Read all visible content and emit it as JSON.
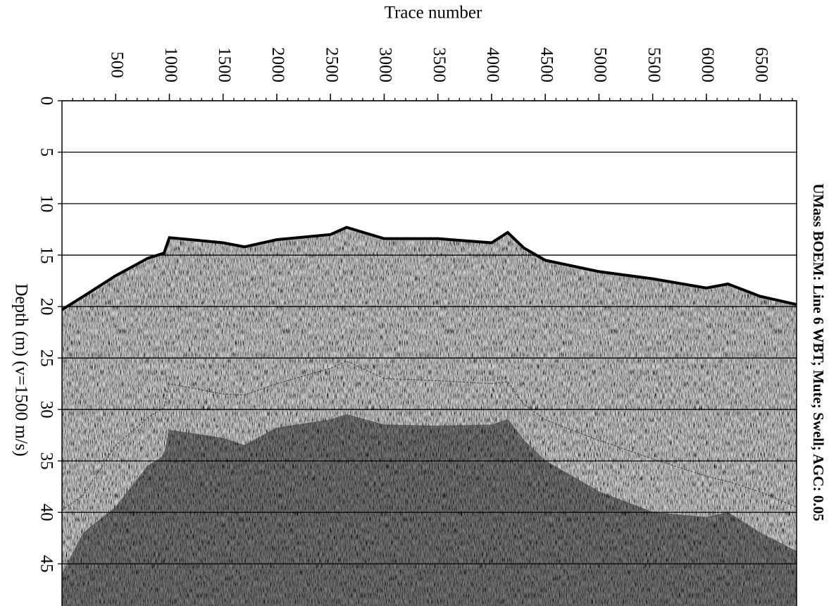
{
  "chart_data": {
    "type": "seismic",
    "title": "UMass BOEM: Line 6 WBT; Mute; Swell; AGC: 0.05",
    "x_label": "Trace number",
    "y_label": "Depth (m) (v=1500 m/s)",
    "xlim": [
      0,
      6840
    ],
    "xticks": [
      500,
      1000,
      1500,
      2000,
      2500,
      3000,
      3500,
      4000,
      4500,
      5000,
      5500,
      6000,
      6500
    ],
    "ylim": [
      0,
      49.1
    ],
    "yticks": [
      0,
      5,
      10,
      15,
      20,
      25,
      30,
      35,
      40,
      45
    ],
    "y_inverted": true,
    "grid": true,
    "x": [
      0,
      200,
      500,
      800,
      950,
      1000,
      1500,
      1700,
      2000,
      2500,
      2650,
      3000,
      3500,
      4000,
      4150,
      4300,
      4500,
      5000,
      5500,
      6000,
      6200,
      6500,
      6840
    ],
    "series": [
      {
        "color": "#000000",
        "fill": "#d2d2d2",
        "values": [
          20.3,
          19,
          17,
          15.3,
          14.8,
          13.3,
          13.8,
          14.2,
          13.5,
          13,
          12.3,
          13.4,
          13.4,
          13.8,
          12.8,
          14.3,
          15.5,
          16.6,
          17.3,
          18.2,
          17.8,
          19,
          19.8
        ]
      },
      {
        "color": "#4a4a4a",
        "values": [
          39.8,
          38.3,
          33.5,
          30.8,
          29.8,
          27.5,
          28.5,
          28.6,
          27.5,
          26,
          25.3,
          27,
          27.2,
          27.5,
          27.3,
          29.5,
          31,
          33,
          34.8,
          36.5,
          37,
          38,
          39.5
        ]
      },
      {
        "color": "#5a5a5a",
        "fill": "#7a7a7a",
        "values": [
          46,
          42,
          39.5,
          35.5,
          34.5,
          32,
          32.8,
          33.5,
          31.8,
          31,
          30.5,
          31.5,
          31.6,
          31.5,
          31,
          33,
          35,
          38,
          40,
          40.5,
          40,
          42,
          43.8
        ]
      }
    ]
  }
}
